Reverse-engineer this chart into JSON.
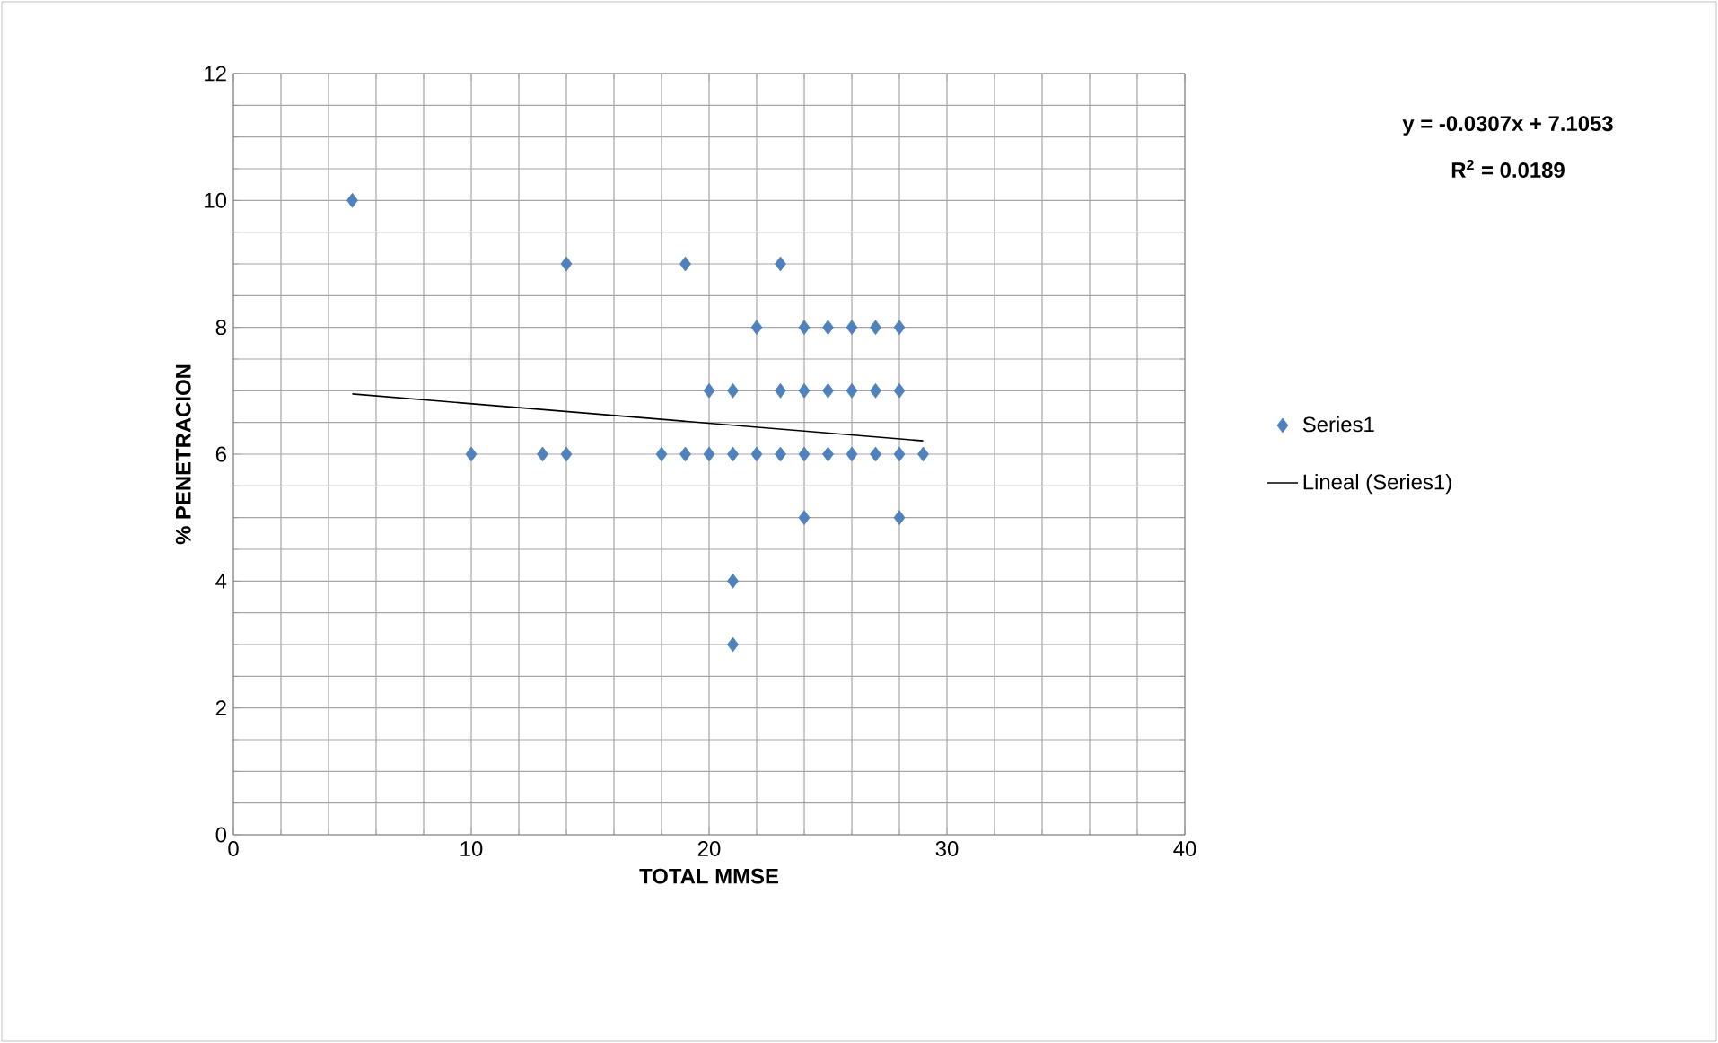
{
  "chart_data": {
    "type": "scatter",
    "xlabel": "TOTAL MMSE",
    "ylabel": "% PENETRACION",
    "xlim": [
      0,
      40
    ],
    "xticks": [
      0,
      10,
      20,
      30,
      40
    ],
    "ylim": [
      0,
      12
    ],
    "yticks": [
      0,
      2,
      4,
      6,
      8,
      10,
      12
    ],
    "grid": true,
    "legend": "right",
    "annotations": [
      "**y = -0.0307x + 7.1053**",
      "**R$^{2}$ = 0.0189**"
    ],
    "series": [
      {
        "name": "Series1",
        "marker": "diamond",
        "color": "#4f81bd",
        "x": [
          5,
          14,
          19,
          23,
          22,
          24,
          25,
          26,
          27,
          28,
          20,
          21,
          23,
          24,
          25,
          26,
          27,
          28,
          10,
          13,
          14,
          18,
          19,
          20,
          21,
          22,
          23,
          24,
          25,
          26,
          27,
          28,
          29,
          24,
          28,
          21,
          21
        ],
        "values": [
          10,
          9,
          9,
          9,
          8,
          8,
          8,
          8,
          8,
          8,
          7,
          7,
          7,
          7,
          7,
          7,
          7,
          7,
          6,
          6,
          6,
          6,
          6,
          6,
          6,
          6,
          6,
          6,
          6,
          6,
          6,
          6,
          6,
          5,
          5,
          4,
          3
        ]
      },
      {
        "name": "Lineal (Series1)",
        "type": "line",
        "marker": "none",
        "color": "#000000",
        "x": [
          5,
          29
        ],
        "values": [
          6.95,
          6.21
        ]
      }
    ]
  }
}
